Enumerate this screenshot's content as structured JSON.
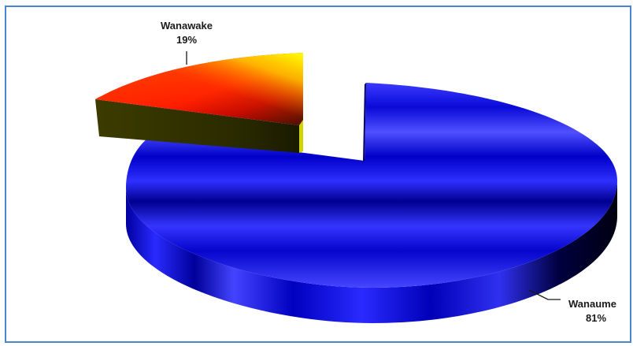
{
  "chart_data": {
    "type": "pie",
    "style": "3d-exploded",
    "title": "",
    "legend": "none",
    "slices": [
      {
        "label": "Wanaume",
        "value": 81,
        "value_label": "81%",
        "color": "#1010e6"
      },
      {
        "label": "Wanawake",
        "value": 19,
        "value_label": "19%",
        "color": "#ff2a00"
      }
    ]
  }
}
